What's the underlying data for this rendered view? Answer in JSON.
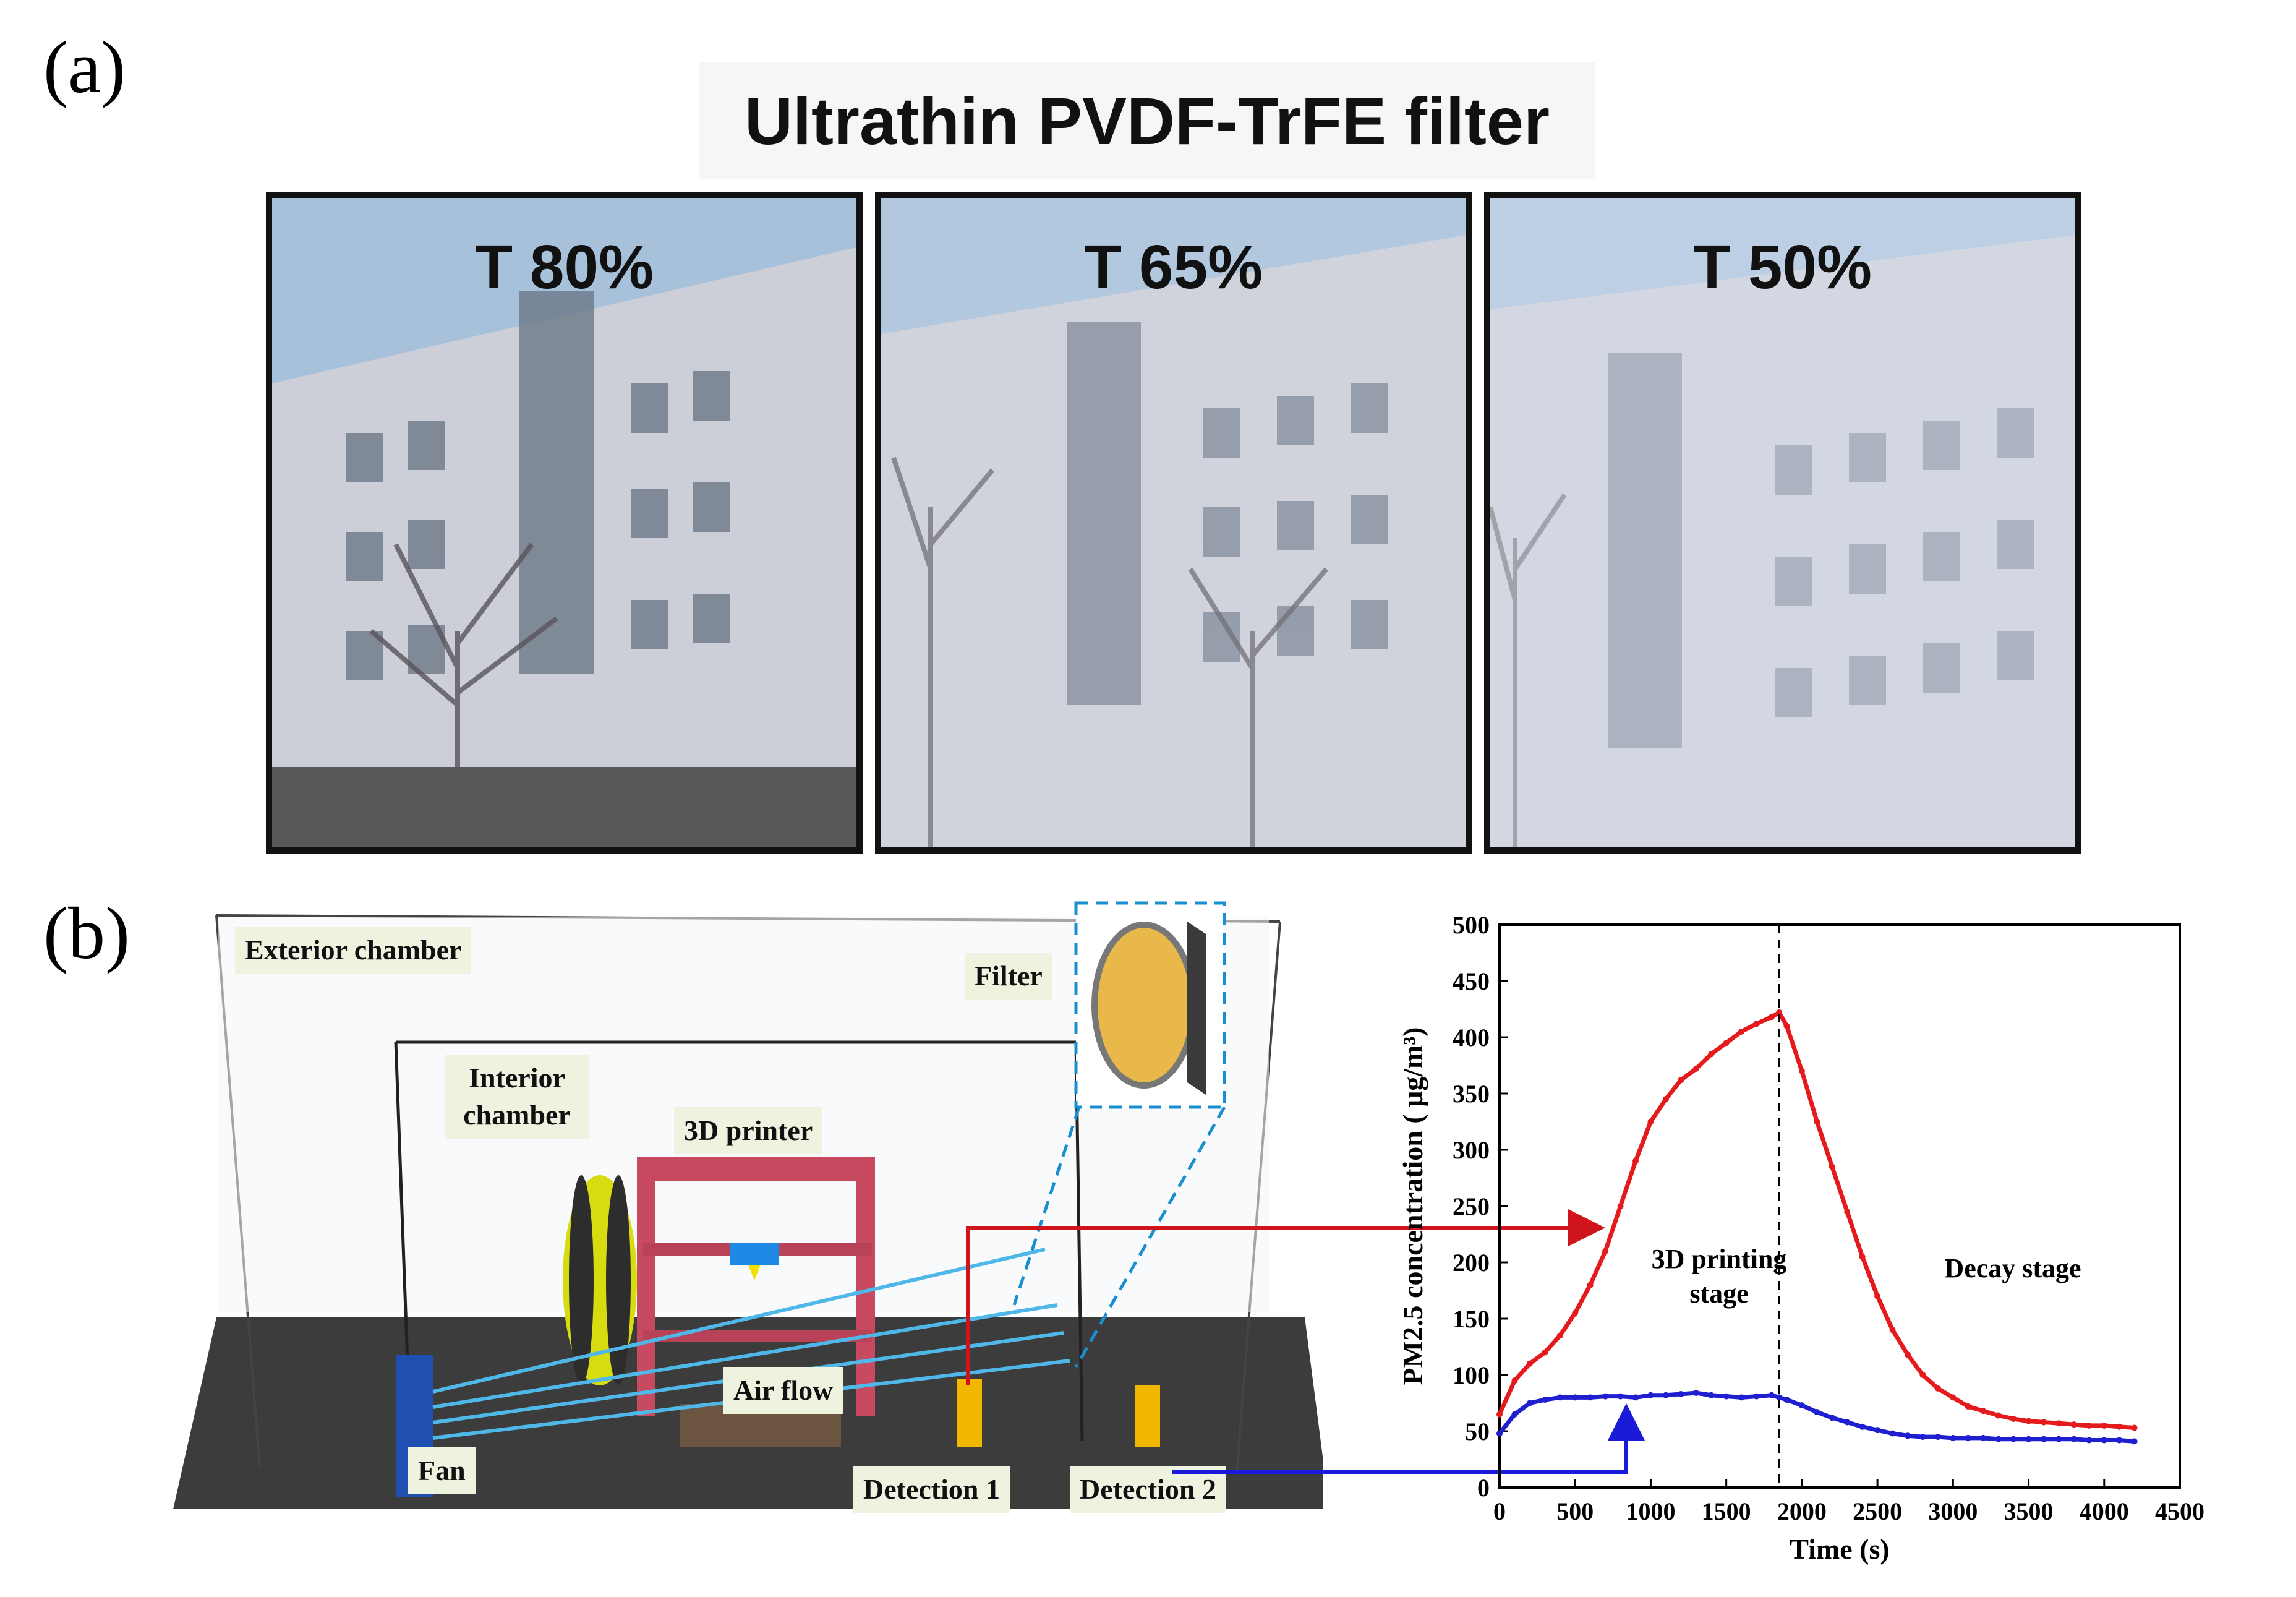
{
  "panel_a": {
    "label": "(a)",
    "title": "Ultrathin PVDF-TrFE filter",
    "photos": [
      {
        "label": "T 80%",
        "transmittance": 0.8
      },
      {
        "label": "T 65%",
        "transmittance": 0.65
      },
      {
        "label": "T 50%",
        "transmittance": 0.5
      }
    ]
  },
  "panel_b": {
    "label": "(b)",
    "diagram": {
      "exterior_chamber": "Exterior chamber",
      "interior_chamber": "Interior chamber",
      "printer": "3D printer",
      "filter": "Filter",
      "air_flow": "Air flow",
      "fan": "Fan",
      "detection_1": "Detection 1",
      "detection_2": "Detection 2"
    }
  },
  "colors": {
    "red": "#e41a1c",
    "blue": "#1f1fd0",
    "arrow_red": "#d0141c",
    "arrow_blue": "#1a1ad8",
    "filter_dash": "#1a8fd0"
  },
  "chart_data": {
    "type": "line",
    "title": "",
    "xlabel": "Time (s)",
    "ylabel": "PM2.5 concentration ( μg/m³)",
    "xlim": [
      0,
      4500
    ],
    "ylim": [
      0,
      500
    ],
    "xticks": [
      0,
      500,
      1000,
      1500,
      2000,
      2500,
      3000,
      3500,
      4000,
      4500
    ],
    "yticks": [
      0,
      50,
      100,
      150,
      200,
      250,
      300,
      350,
      400,
      450,
      500
    ],
    "vline_x": 1850,
    "annotations": [
      "3D printing stage",
      "Decay stage"
    ],
    "series": [
      {
        "color": "#e41a1c",
        "x": [
          0,
          100,
          200,
          300,
          400,
          500,
          600,
          700,
          800,
          900,
          1000,
          1100,
          1200,
          1300,
          1400,
          1500,
          1600,
          1700,
          1800,
          1850,
          1900,
          2000,
          2100,
          2200,
          2300,
          2400,
          2500,
          2600,
          2700,
          2800,
          2900,
          3000,
          3100,
          3200,
          3300,
          3400,
          3500,
          3600,
          3700,
          3800,
          3900,
          4000,
          4100,
          4200
        ],
        "y": [
          65,
          95,
          110,
          120,
          135,
          155,
          180,
          210,
          250,
          290,
          325,
          345,
          362,
          372,
          385,
          395,
          405,
          412,
          418,
          422,
          410,
          370,
          325,
          285,
          245,
          205,
          170,
          140,
          118,
          100,
          88,
          80,
          72,
          68,
          64,
          61,
          59,
          58,
          57,
          56,
          55,
          55,
          54,
          53
        ]
      },
      {
        "color": "#1f1fd0",
        "x": [
          0,
          100,
          200,
          300,
          400,
          500,
          600,
          700,
          800,
          900,
          1000,
          1100,
          1200,
          1300,
          1400,
          1500,
          1600,
          1700,
          1800,
          1850,
          1900,
          2000,
          2100,
          2200,
          2300,
          2400,
          2500,
          2600,
          2700,
          2800,
          2900,
          3000,
          3100,
          3200,
          3300,
          3400,
          3500,
          3600,
          3700,
          3800,
          3900,
          4000,
          4100,
          4200
        ],
        "y": [
          48,
          65,
          75,
          78,
          80,
          80,
          80,
          81,
          81,
          80,
          82,
          82,
          83,
          84,
          82,
          81,
          80,
          81,
          82,
          80,
          78,
          73,
          67,
          62,
          58,
          54,
          51,
          48,
          46,
          45,
          45,
          44,
          44,
          44,
          43,
          43,
          43,
          43,
          43,
          43,
          42,
          42,
          42,
          41
        ]
      }
    ]
  }
}
